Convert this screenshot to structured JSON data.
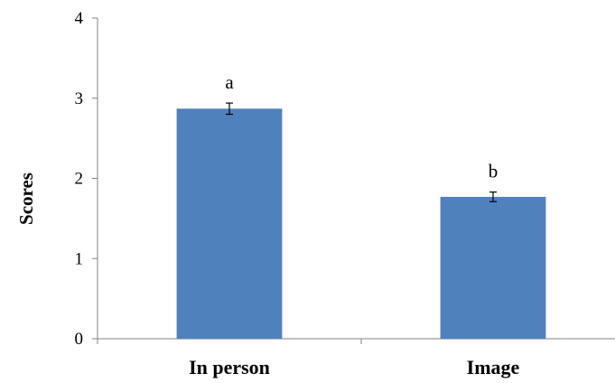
{
  "chart_data": {
    "type": "bar",
    "categories": [
      "In person",
      "Image"
    ],
    "values": [
      2.87,
      1.77
    ],
    "errors": [
      0.07,
      0.06
    ],
    "annotations": [
      "a",
      "b"
    ],
    "ylabel": "Scores",
    "xlabel": "",
    "ylim": [
      0,
      4
    ],
    "yticks": [
      "0",
      "1",
      "2",
      "3",
      "4"
    ],
    "bar_color": "#4f81bd",
    "grid": false,
    "legend": "none"
  }
}
